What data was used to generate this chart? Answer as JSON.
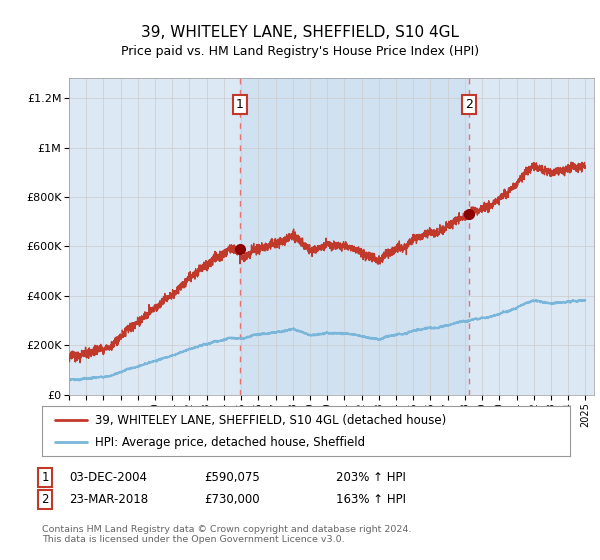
{
  "title": "39, WHITELEY LANE, SHEFFIELD, S10 4GL",
  "subtitle": "Price paid vs. HM Land Registry's House Price Index (HPI)",
  "ylabel_ticks": [
    "£0",
    "£200K",
    "£400K",
    "£600K",
    "£800K",
    "£1M",
    "£1.2M"
  ],
  "ytick_values": [
    0,
    200000,
    400000,
    600000,
    800000,
    1000000,
    1200000
  ],
  "ylim": [
    0,
    1280000
  ],
  "xlim_start": 1995.0,
  "xlim_end": 2025.5,
  "sale1_date": 2004.92,
  "sale1_price": 590075,
  "sale2_date": 2018.22,
  "sale2_price": 730000,
  "legend_line1": "39, WHITELEY LANE, SHEFFIELD, S10 4GL (detached house)",
  "legend_line2": "HPI: Average price, detached house, Sheffield",
  "footnote": "Contains HM Land Registry data © Crown copyright and database right 2024.\nThis data is licensed under the Open Government Licence v3.0.",
  "hpi_color": "#7ab6d9",
  "price_color": "#c0392b",
  "bg_color": "#dce9f5",
  "plot_bg": "#ffffff",
  "grid_color": "#cccccc",
  "vline_color": "#e87070",
  "sale_dot_color": "#8b0000"
}
